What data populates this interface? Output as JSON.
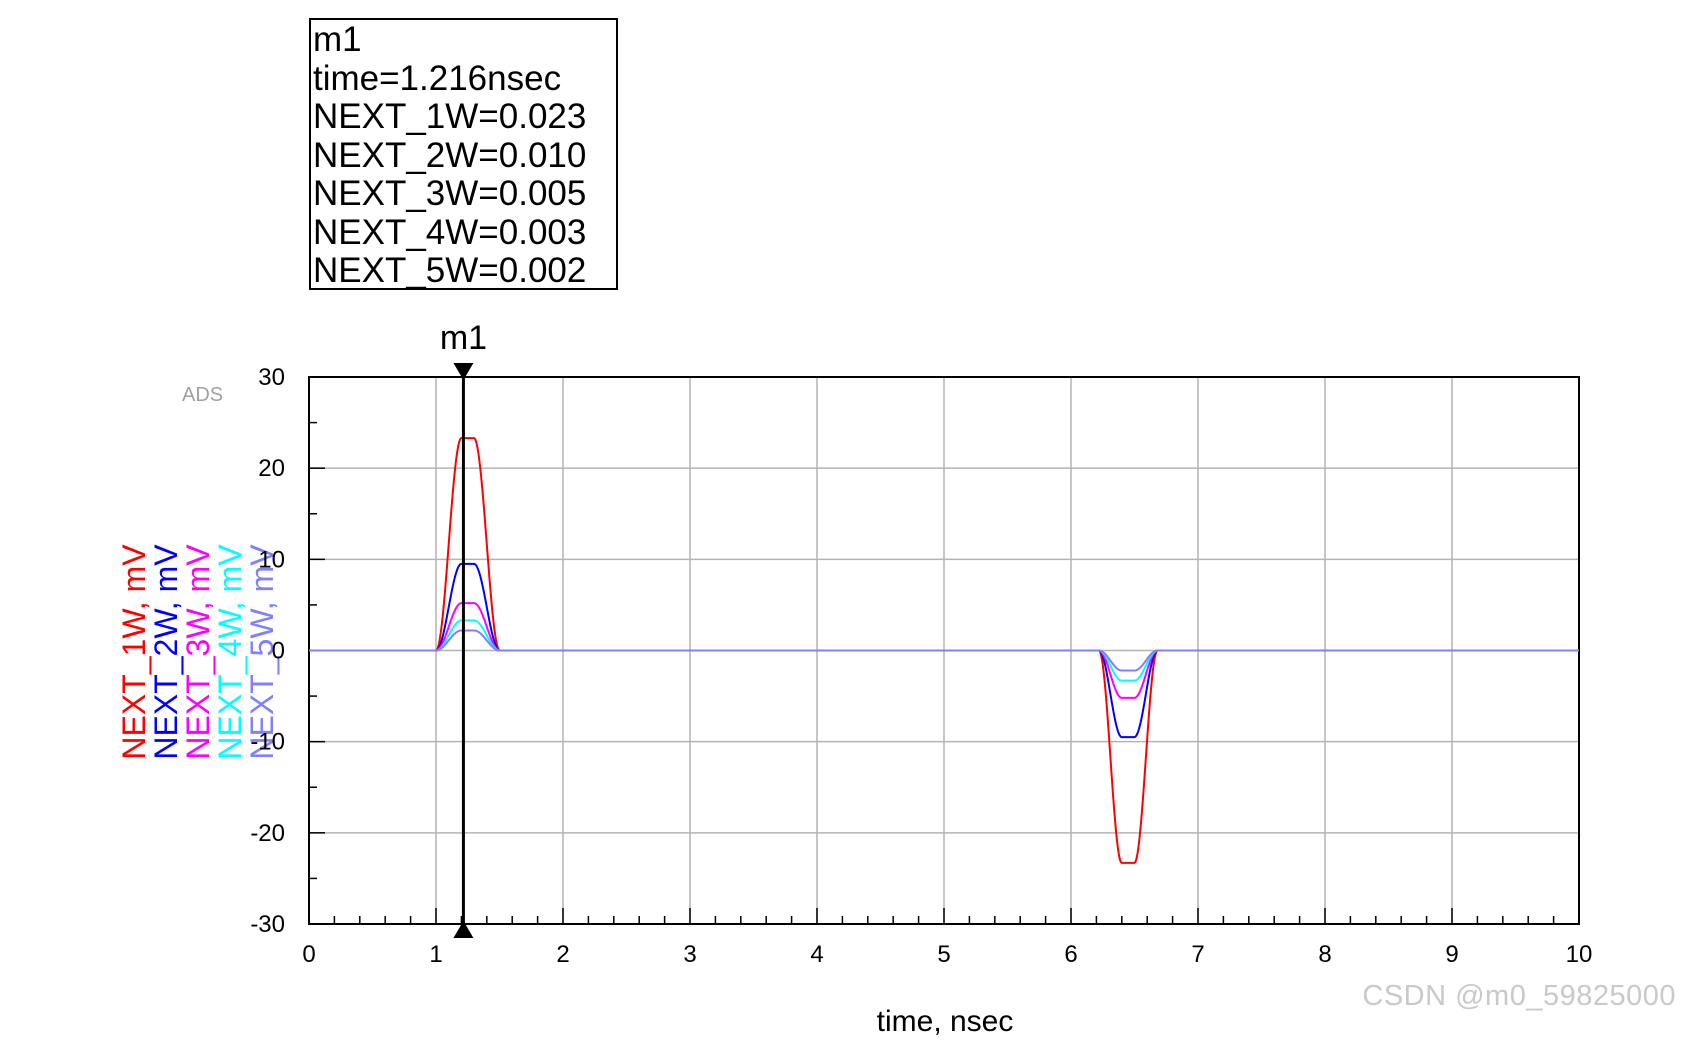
{
  "marker_box": {
    "name": "m1",
    "time": "time=1.216nsec",
    "values": [
      "NEXT_1W=0.023",
      "NEXT_2W=0.010",
      "NEXT_3W=0.005",
      "NEXT_4W=0.003",
      "NEXT_5W=0.002"
    ]
  },
  "watermark": "CSDN @m0_59825000",
  "ads_label": "ADS",
  "chart_data": {
    "type": "line",
    "xlabel": "time, nsec",
    "ylabel_entries": [
      {
        "text": "NEXT_5W, mV",
        "color": "#8080ff"
      },
      {
        "text": "NEXT_4W, mV",
        "color": "#00ffff"
      },
      {
        "text": "NEXT_3W, mV",
        "color": "#ff00ff"
      },
      {
        "text": "NEXT_2W, mV",
        "color": "#0000ff"
      },
      {
        "text": "NEXT_1W, mV",
        "color": "#ff0000"
      }
    ],
    "xlim": [
      0,
      10
    ],
    "ylim": [
      -30,
      30
    ],
    "xticks": [
      0,
      1,
      2,
      3,
      4,
      5,
      6,
      7,
      8,
      9,
      10
    ],
    "yticks": [
      30,
      20,
      10,
      0,
      -10,
      -20,
      -30
    ],
    "grid": true,
    "marker": {
      "label": "m1",
      "x": 1.216
    },
    "pulse_shape": {
      "positive": {
        "rise_start": 1.0,
        "plateau_start": 1.2,
        "plateau_end": 1.3,
        "fall_end": 1.5,
        "tail_end": 1.58
      },
      "negative": {
        "rise_start": 6.22,
        "plateau_start": 6.4,
        "plateau_end": 6.5,
        "fall_end": 6.68,
        "tail_end": 6.78
      }
    },
    "series": [
      {
        "name": "NEXT_1W",
        "color": "#ff0000",
        "peak": 23.3,
        "trough": -23.3
      },
      {
        "name": "NEXT_2W",
        "color": "#0000ff",
        "peak": 9.5,
        "trough": -9.5
      },
      {
        "name": "NEXT_3W",
        "color": "#ff00ff",
        "peak": 5.2,
        "trough": -5.2
      },
      {
        "name": "NEXT_4W",
        "color": "#00ffff",
        "peak": 3.3,
        "trough": -3.3
      },
      {
        "name": "NEXT_5W",
        "color": "#8080ff",
        "peak": 2.2,
        "trough": -2.2
      }
    ]
  }
}
